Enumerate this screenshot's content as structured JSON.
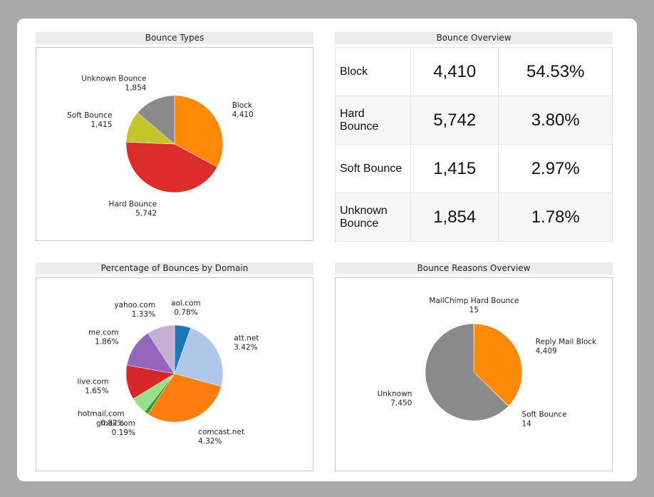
{
  "chart_data": [
    {
      "type": "pie",
      "title": "Bounce Types",
      "categories": [
        "Block",
        "Hard Bounce",
        "Soft Bounce",
        "Unknown Bounce"
      ],
      "values": [
        4410,
        5742,
        1415,
        1854
      ],
      "value_labels": [
        "4,410",
        "5,742",
        "1,415",
        "1,854"
      ],
      "colors": [
        "#ff8a0a",
        "#dc2c2c",
        "#c4c42c",
        "#8a8a8a"
      ]
    },
    {
      "type": "pie",
      "title": "Percentage of Bounces by Domain",
      "categories": [
        "aol.com",
        "att.net",
        "comcast.net",
        "gmail.com",
        "hotmail.com",
        "live.com",
        "me.com",
        "yahoo.com"
      ],
      "values": [
        0.78,
        3.42,
        4.32,
        0.19,
        0.82,
        1.65,
        1.86,
        1.33
      ],
      "value_labels": [
        "0.78%",
        "3.42%",
        "4.32%",
        "0.19%",
        "0.82%",
        "1.65%",
        "1.86%",
        "1.33%"
      ],
      "colors": [
        "#1f77b4",
        "#aec7e8",
        "#ff7f0e",
        "#2ca02c",
        "#98df8a",
        "#d62728",
        "#9467bd",
        "#c5b0d5"
      ]
    },
    {
      "type": "pie",
      "title": "Bounce Reasons Overview",
      "categories": [
        "MailChimp Hard Bounce",
        "Reply Mail Block",
        "Soft Bounce",
        "Unknown"
      ],
      "values": [
        15,
        4409,
        14,
        7450
      ],
      "value_labels": [
        "15",
        "4,409",
        "14",
        "7,450"
      ],
      "colors": [
        "#dc2c2c",
        "#ff8a0a",
        "#c4c42c",
        "#8a8a8a"
      ]
    }
  ],
  "table": {
    "title": "Bounce Overview",
    "rows": [
      [
        "Block",
        "4,410",
        "54.53%"
      ],
      [
        "Hard Bounce",
        "5,742",
        "3.80%"
      ],
      [
        "Soft Bounce",
        "1,415",
        "2.97%"
      ],
      [
        "Unknown Bounce",
        "1,854",
        "1.78%"
      ]
    ]
  }
}
